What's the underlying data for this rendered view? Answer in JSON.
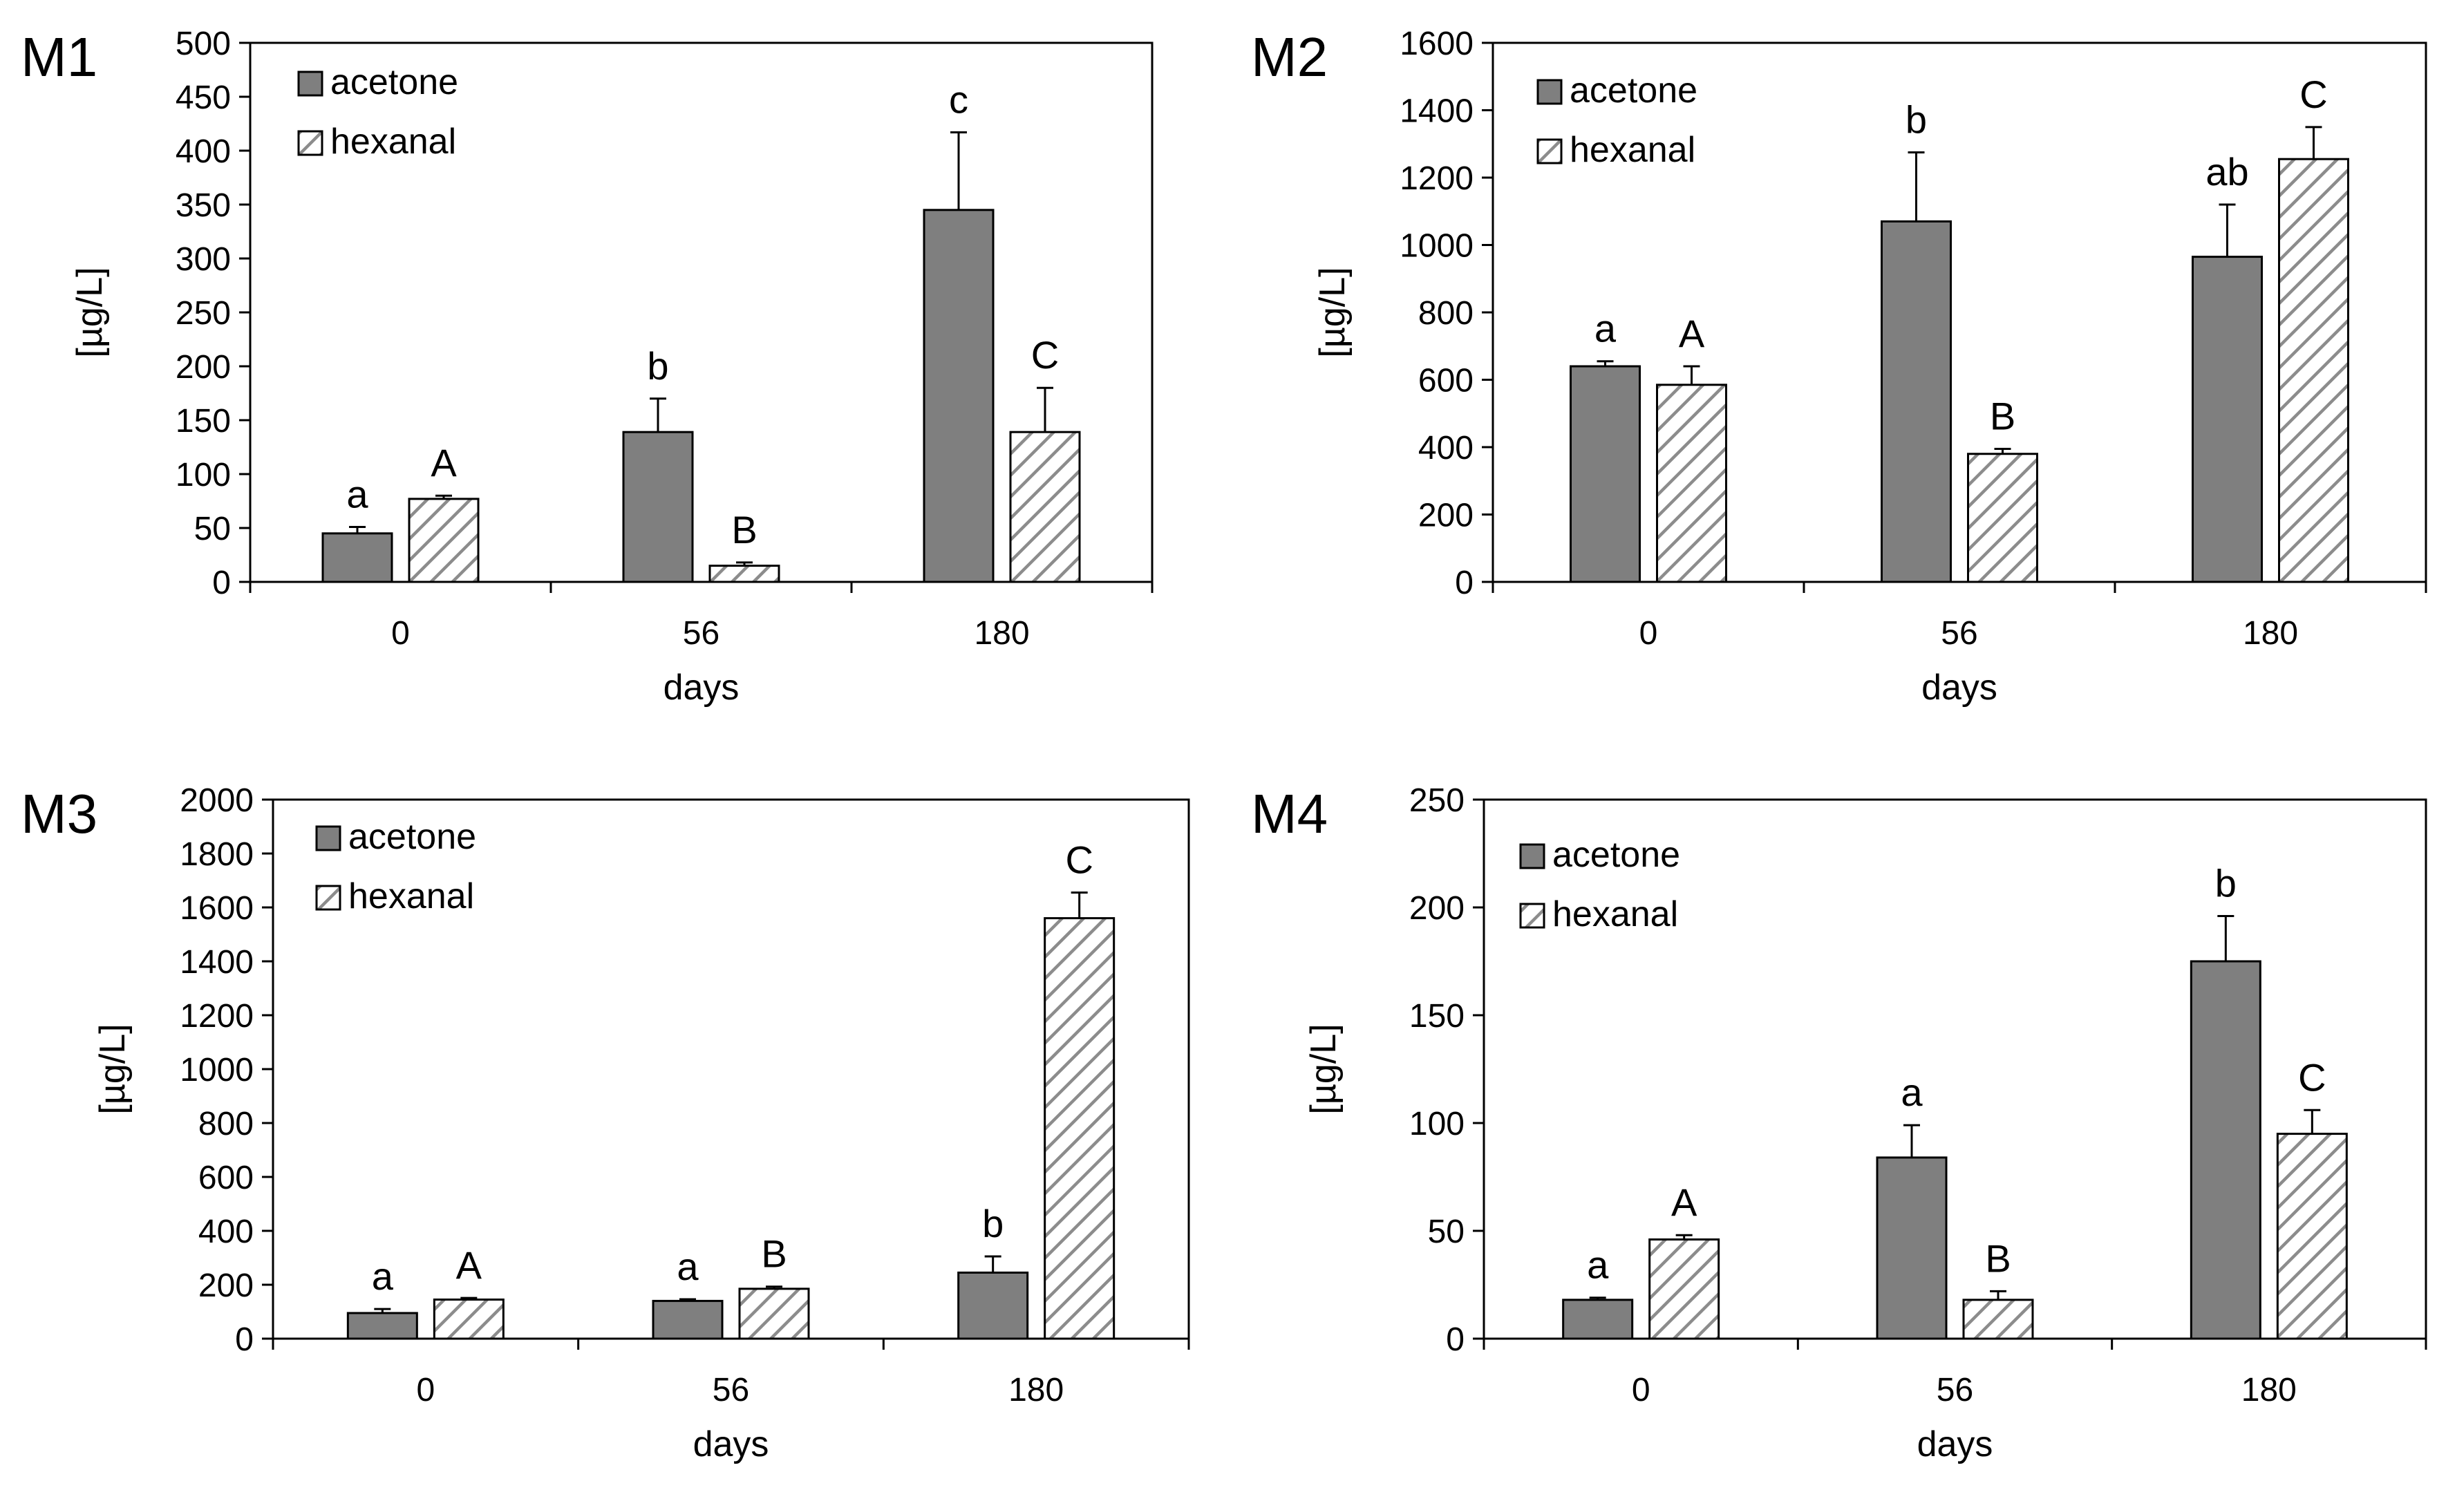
{
  "colors": {
    "acetone": "#7f7f7f",
    "hexanal_fill": "#ffffff",
    "hexanal_hatch": "#8c8c8c",
    "outline": "#000000"
  },
  "chart_data": [
    {
      "type": "bar",
      "panel": "M1",
      "categories": [
        "0",
        "56",
        "180"
      ],
      "xlabel": "days",
      "ylabel": "[µg/L]",
      "ylim": [
        0,
        500
      ],
      "yticks": [
        "0",
        "50",
        "100",
        "150",
        "200",
        "250",
        "300",
        "350",
        "400",
        "450",
        "500"
      ],
      "legend": [
        "acetone",
        "hexanal"
      ],
      "series": [
        {
          "name": "acetone",
          "values": [
            45,
            139,
            345
          ],
          "errors": [
            6,
            31,
            72
          ],
          "letters": [
            "a",
            "b",
            "c"
          ]
        },
        {
          "name": "hexanal",
          "values": [
            77,
            15,
            139
          ],
          "errors": [
            3,
            3,
            41
          ],
          "letters": [
            "A",
            "B",
            "C"
          ]
        }
      ]
    },
    {
      "type": "bar",
      "panel": "M2",
      "categories": [
        "0",
        "56",
        "180"
      ],
      "xlabel": "days",
      "ylabel": "[µg/L]",
      "ylim": [
        0,
        1600
      ],
      "yticks": [
        "0",
        "200",
        "400",
        "600",
        "800",
        "1000",
        "1200",
        "1400",
        "1600"
      ],
      "legend": [
        "acetone",
        "hexanal"
      ],
      "series": [
        {
          "name": "acetone",
          "values": [
            640,
            1070,
            965
          ],
          "errors": [
            15,
            205,
            155
          ],
          "letters": [
            "a",
            "b",
            "ab"
          ]
        },
        {
          "name": "hexanal",
          "values": [
            585,
            380,
            1255
          ],
          "errors": [
            55,
            15,
            95
          ],
          "letters": [
            "A",
            "B",
            "C"
          ]
        }
      ]
    },
    {
      "type": "bar",
      "panel": "M3",
      "categories": [
        "0",
        "56",
        "180"
      ],
      "xlabel": "days",
      "ylabel": "[µg/L]",
      "ylim": [
        0,
        2000
      ],
      "yticks": [
        "0",
        "200",
        "400",
        "600",
        "800",
        "1000",
        "1200",
        "1400",
        "1600",
        "1800",
        "2000"
      ],
      "legend": [
        "acetone",
        "hexanal"
      ],
      "series": [
        {
          "name": "acetone",
          "values": [
            95,
            140,
            245
          ],
          "errors": [
            15,
            6,
            60
          ],
          "letters": [
            "a",
            "a",
            "b"
          ]
        },
        {
          "name": "hexanal",
          "values": [
            145,
            185,
            1560
          ],
          "errors": [
            6,
            8,
            95
          ],
          "letters": [
            "A",
            "B",
            "C"
          ]
        }
      ]
    },
    {
      "type": "bar",
      "panel": "M4",
      "categories": [
        "0",
        "56",
        "180"
      ],
      "xlabel": "days",
      "ylabel": "[µg/L]",
      "ylim": [
        0,
        250
      ],
      "yticks": [
        "0",
        "50",
        "100",
        "150",
        "200",
        "250"
      ],
      "legend": [
        "acetone",
        "hexanal"
      ],
      "series": [
        {
          "name": "acetone",
          "values": [
            18,
            84,
            175
          ],
          "errors": [
            1,
            15,
            21
          ],
          "letters": [
            "a",
            "a",
            "b"
          ]
        },
        {
          "name": "hexanal",
          "values": [
            46,
            18,
            95
          ],
          "errors": [
            2,
            4,
            11
          ],
          "letters": [
            "A",
            "B",
            "C"
          ]
        }
      ]
    }
  ]
}
